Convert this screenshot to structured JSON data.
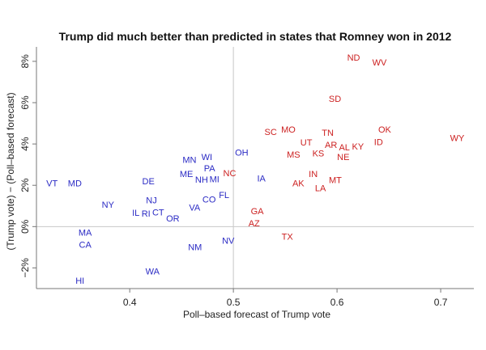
{
  "chart_data": {
    "type": "scatter",
    "title": "Trump did much better than predicted in states that Romney won in 2012",
    "xlabel": "Poll–based forecast of Trump vote",
    "ylabel": "(Trump vote) − (Poll–based forecast)",
    "xlim": [
      0.31,
      0.732
    ],
    "ylim": [
      -3.0,
      8.7
    ],
    "x_ticks": [
      0.4,
      0.5,
      0.6,
      0.7
    ],
    "x_tick_labels": [
      "0.4",
      "0.5",
      "0.6",
      "0.7"
    ],
    "y_ticks": [
      -2,
      0,
      2,
      4,
      6,
      8
    ],
    "y_tick_labels": [
      "−2%",
      "0%",
      "2%",
      "4%",
      "6%",
      "8%"
    ],
    "reference_lines": {
      "x": 0.5,
      "y": 0
    },
    "grid": false,
    "colors": {
      "obama_2012": "#2a2ac4",
      "romney_2012": "#cc2020",
      "reference": "#c8c8c8"
    },
    "points": [
      {
        "label": "VT",
        "x": 0.325,
        "y": 2.1,
        "group": "obama_2012"
      },
      {
        "label": "MD",
        "x": 0.347,
        "y": 2.1,
        "group": "obama_2012"
      },
      {
        "label": "DE",
        "x": 0.418,
        "y": 2.2,
        "group": "obama_2012"
      },
      {
        "label": "NY",
        "x": 0.379,
        "y": 1.06,
        "group": "obama_2012"
      },
      {
        "label": "NJ",
        "x": 0.421,
        "y": 1.2,
        "group": "obama_2012"
      },
      {
        "label": "IL",
        "x": 0.409,
        "y": 0.67,
        "group": "obama_2012"
      },
      {
        "label": "RI",
        "x": 0.418,
        "y": 0.63,
        "group": "obama_2012"
      },
      {
        "label": "CT",
        "x": 0.429,
        "y": 0.7,
        "group": "obama_2012"
      },
      {
        "label": "OR",
        "x": 0.44,
        "y": 0.4,
        "group": "obama_2012"
      },
      {
        "label": "VA",
        "x": 0.465,
        "y": 0.94,
        "group": "obama_2012"
      },
      {
        "label": "CO",
        "x": 0.475,
        "y": 1.33,
        "group": "obama_2012"
      },
      {
        "label": "FL",
        "x": 0.491,
        "y": 1.53,
        "group": "obama_2012"
      },
      {
        "label": "MA",
        "x": 0.357,
        "y": -0.4,
        "group": "obama_2012"
      },
      {
        "label": "CA",
        "x": 0.357,
        "y": -0.75,
        "group": "obama_2012"
      },
      {
        "label": "HI",
        "x": 0.352,
        "y": -2.6,
        "group": "obama_2012"
      },
      {
        "label": "WA",
        "x": 0.422,
        "y": -2.15,
        "group": "obama_2012"
      },
      {
        "label": "NM",
        "x": 0.463,
        "y": -0.98,
        "group": "obama_2012"
      },
      {
        "label": "NV",
        "x": 0.495,
        "y": -0.67,
        "group": "obama_2012"
      },
      {
        "label": "MN",
        "x": 0.46,
        "y": 3.25,
        "group": "obama_2012"
      },
      {
        "label": "WI",
        "x": 0.472,
        "y": 3.3,
        "group": "obama_2012"
      },
      {
        "label": "PA",
        "x": 0.477,
        "y": 2.8,
        "group": "obama_2012"
      },
      {
        "label": "ME",
        "x": 0.457,
        "y": 2.55,
        "group": "obama_2012"
      },
      {
        "label": "NH",
        "x": 0.474,
        "y": 2.43,
        "group": "obama_2012"
      },
      {
        "label": "MI",
        "x": 0.477,
        "y": 2.3,
        "group": "obama_2012"
      },
      {
        "label": "OH",
        "x": 0.508,
        "y": 3.6,
        "group": "obama_2012"
      },
      {
        "label": "IA",
        "x": 0.527,
        "y": 2.35,
        "group": "obama_2012"
      },
      {
        "label": "NC",
        "x": 0.494,
        "y": 2.6,
        "group": "romney_2012"
      },
      {
        "label": "ND",
        "x": 0.616,
        "y": 8.2,
        "group": "romney_2012"
      },
      {
        "label": "WV",
        "x": 0.641,
        "y": 7.96,
        "group": "romney_2012"
      },
      {
        "label": "SD",
        "x": 0.598,
        "y": 6.2,
        "group": "romney_2012"
      },
      {
        "label": "SC",
        "x": 0.536,
        "y": 4.6,
        "group": "romney_2012"
      },
      {
        "label": "MO",
        "x": 0.553,
        "y": 4.7,
        "group": "romney_2012"
      },
      {
        "label": "TN",
        "x": 0.591,
        "y": 4.55,
        "group": "romney_2012"
      },
      {
        "label": "UT",
        "x": 0.575,
        "y": 3.96,
        "group": "romney_2012"
      },
      {
        "label": "KS",
        "x": 0.578,
        "y": 3.72,
        "group": "romney_2012"
      },
      {
        "label": "AR",
        "x": 0.602,
        "y": 3.96,
        "group": "romney_2012"
      },
      {
        "label": "AL",
        "x": 0.604,
        "y": 3.84,
        "group": "romney_2012"
      },
      {
        "label": "KY",
        "x": 0.617,
        "y": 3.88,
        "group": "romney_2012"
      },
      {
        "label": "OK",
        "x": 0.646,
        "y": 4.7,
        "group": "romney_2012"
      },
      {
        "label": "ID",
        "x": 0.64,
        "y": 4.1,
        "group": "romney_2012"
      },
      {
        "label": "WY",
        "x": 0.716,
        "y": 4.3,
        "group": "romney_2012"
      },
      {
        "label": "MS",
        "x": 0.558,
        "y": 3.5,
        "group": "romney_2012"
      },
      {
        "label": "NE",
        "x": 0.606,
        "y": 3.37,
        "group": "romney_2012"
      },
      {
        "label": "IN",
        "x": 0.577,
        "y": 2.55,
        "group": "romney_2012"
      },
      {
        "label": "AK",
        "x": 0.565,
        "y": 2.1,
        "group": "romney_2012"
      },
      {
        "label": "MT",
        "x": 0.596,
        "y": 2.27,
        "group": "romney_2012"
      },
      {
        "label": "LA",
        "x": 0.584,
        "y": 1.88,
        "group": "romney_2012"
      },
      {
        "label": "GA",
        "x": 0.523,
        "y": 0.67,
        "group": "romney_2012"
      },
      {
        "label": "AZ",
        "x": 0.52,
        "y": 0.24,
        "group": "romney_2012"
      },
      {
        "label": "TX",
        "x": 0.552,
        "y": -0.47,
        "group": "romney_2012"
      }
    ]
  }
}
